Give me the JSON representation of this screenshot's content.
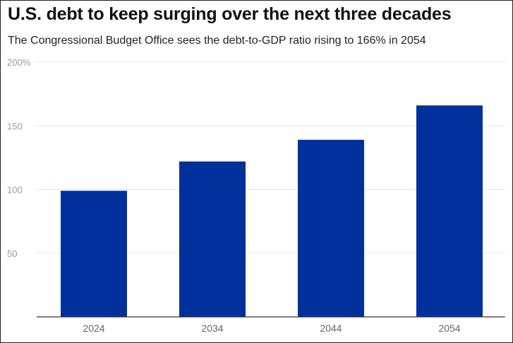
{
  "title": "U.S. debt to keep surging over the next three decades",
  "subtitle": "The Congressional Budget Office sees the debt-to-GDP ratio rising to 166% in 2054",
  "colors": {
    "bar": "#00309c",
    "grid": "#e6e6e6",
    "axis": "#333333"
  },
  "chart_data": {
    "type": "bar",
    "categories": [
      "2024",
      "2034",
      "2044",
      "2054"
    ],
    "values": [
      99,
      122,
      139,
      166
    ],
    "ylim": [
      0,
      200
    ],
    "yticks": [
      50,
      100,
      150,
      200
    ],
    "ytick_labels": [
      "50",
      "100",
      "150",
      "200%"
    ],
    "grid": true
  }
}
